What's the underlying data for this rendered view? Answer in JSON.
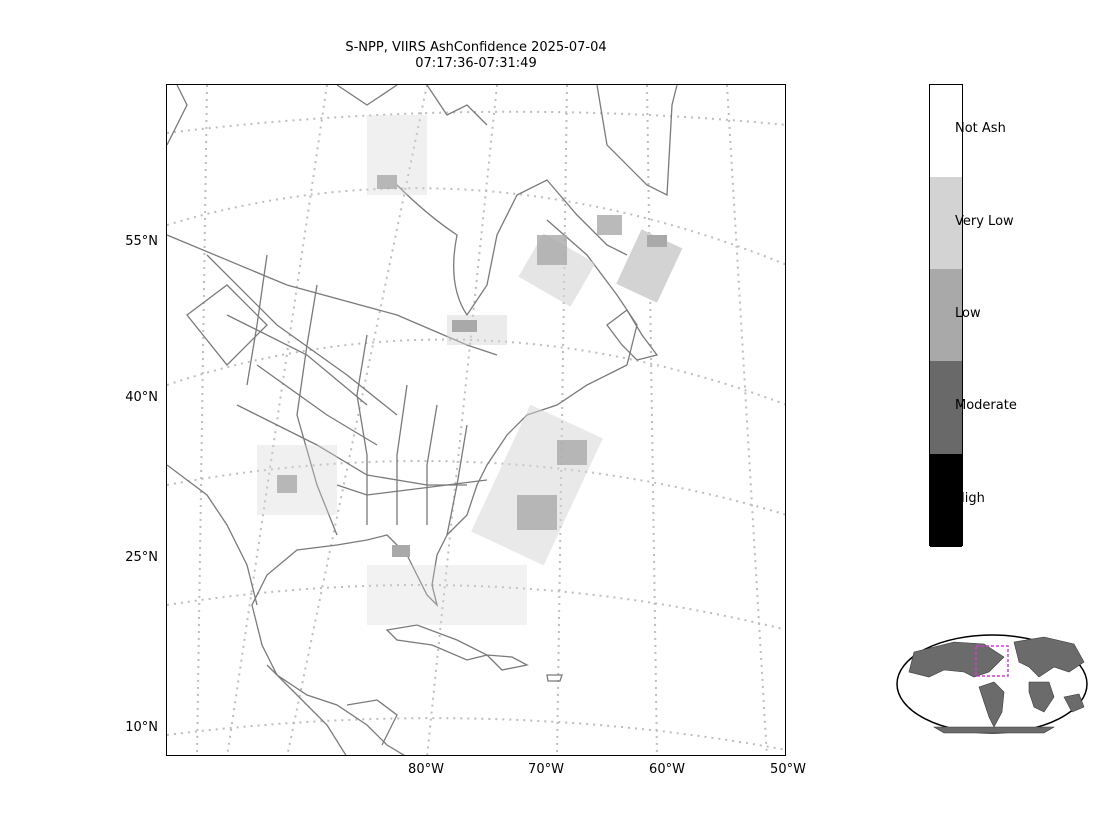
{
  "title": {
    "line1": "S-NPP, VIIRS AshConfidence 2025-07-04",
    "line2": "07:17:36-07:31:49"
  },
  "map": {
    "background": "#ffffff",
    "coastline_color": "#7a7a7a",
    "graticule_color": "#bdbdbd",
    "lat_labels": [
      "55°N",
      "40°N",
      "25°N",
      "10°N"
    ],
    "lon_labels": [
      "80°W",
      "70°W",
      "60°W",
      "50°W"
    ]
  },
  "colorbar": {
    "categories": [
      {
        "label": "Not Ash",
        "color": "#ffffff"
      },
      {
        "label": "Very Low",
        "color": "#d3d3d3"
      },
      {
        "label": "Low",
        "color": "#a9a9a9"
      },
      {
        "label": "Moderate",
        "color": "#696969"
      },
      {
        "label": "High",
        "color": "#000000"
      }
    ]
  },
  "inset": {
    "land_color": "#6b6b6b",
    "highlight_color": "#d63ad6"
  }
}
